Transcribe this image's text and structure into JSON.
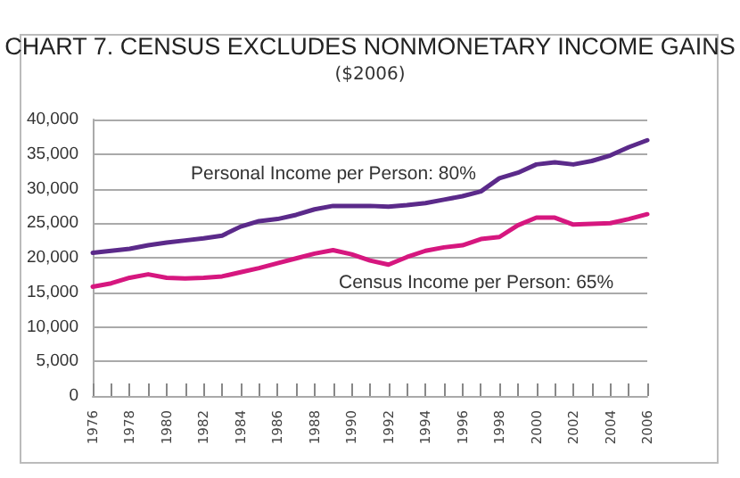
{
  "chart_data": {
    "type": "line",
    "title": "CHART 7. CENSUS EXCLUDES NONMONETARY INCOME GAINS",
    "subtitle": "($2006)",
    "categories": [
      "1976",
      null,
      "1978",
      null,
      "1980",
      null,
      "1982",
      null,
      "1984",
      null,
      "1986",
      null,
      "1988",
      null,
      "1990",
      null,
      "1992",
      null,
      "1994",
      null,
      "1996",
      null,
      "1998",
      null,
      "2000",
      null,
      "2002",
      null,
      "2004",
      null,
      "2006"
    ],
    "series": [
      {
        "color": "#5b2a8a",
        "values": [
          20700,
          21000,
          21300,
          21800,
          22200,
          22500,
          22800,
          23200,
          24500,
          25300,
          25600,
          26200,
          27000,
          27500,
          27500,
          27500,
          27400,
          27600,
          27900,
          28400,
          28900,
          29600,
          31500,
          32300,
          33500,
          33800,
          33500,
          34000,
          34800,
          36000,
          37000
        ]
      },
      {
        "color": "#d6177f",
        "values": [
          15800,
          16300,
          17100,
          17600,
          17100,
          17000,
          17100,
          17300,
          17900,
          18500,
          19200,
          19900,
          20600,
          21100,
          20500,
          19600,
          19000,
          20100,
          21000,
          21500,
          21800,
          22700,
          23000,
          24700,
          25800,
          25800,
          24800,
          24900,
          25000,
          25600,
          26300
        ]
      }
    ],
    "annotations": [
      "Personal Income per Person: 80%",
      "Census Income per Person: 65%"
    ],
    "ylim": [
      0,
      40000
    ],
    "yticks": [
      {
        "value": 0,
        "label": "0"
      },
      {
        "value": 5000,
        "label": "5,000"
      },
      {
        "value": 10000,
        "label": "10,000"
      },
      {
        "value": 15000,
        "label": "15,000"
      },
      {
        "value": 20000,
        "label": "20,000"
      },
      {
        "value": 25000,
        "label": "25,000"
      },
      {
        "value": 30000,
        "label": "30,000"
      },
      {
        "value": 35000,
        "label": "35,000"
      },
      {
        "value": 40000,
        "label": "40,000"
      }
    ],
    "grid": "y",
    "marker": "none",
    "line_style": "solid"
  }
}
